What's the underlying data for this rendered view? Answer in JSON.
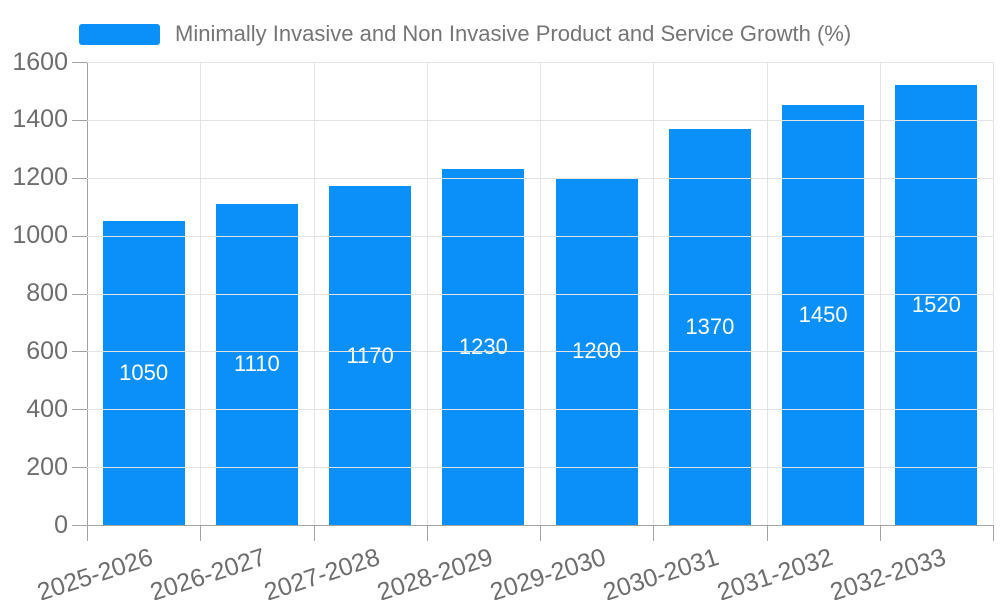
{
  "chart_data": {
    "type": "bar",
    "legend": "Minimally Invasive and Non Invasive Product and Service Growth (%)",
    "legend_position": "top-left",
    "categories": [
      "2025-2026",
      "2026-2027",
      "2027-2028",
      "2028-2029",
      "2029-2030",
      "2030-2031",
      "2031-2032",
      "2032-2033"
    ],
    "values": [
      1050,
      1110,
      1170,
      1230,
      1200,
      1370,
      1450,
      1520
    ],
    "y_ticks": [
      "0",
      "200",
      "400",
      "600",
      "800",
      "1000",
      "1200",
      "1400",
      "1600"
    ],
    "ylim": [
      0,
      1600
    ],
    "xlabel": "",
    "ylabel": "",
    "grid": true,
    "bar_value_labels_shown": true
  },
  "colors": {
    "bar": "#0a90f8",
    "grid": "#e3e3e3",
    "axis": "#a3a3a3",
    "tick_text": "#6d6d6d",
    "legend_text": "#757575",
    "value_text": "#ffffff",
    "background": "#ffffff"
  }
}
